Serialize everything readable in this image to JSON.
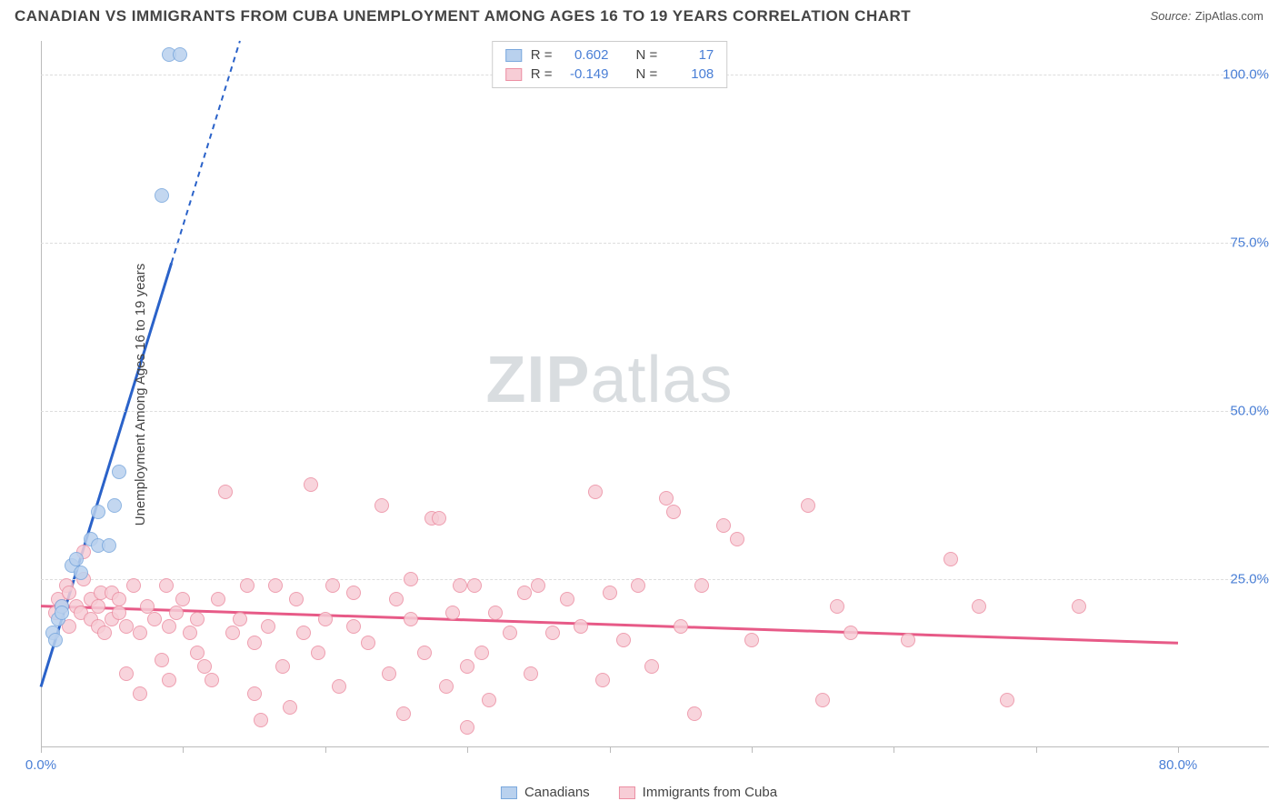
{
  "title": "CANADIAN VS IMMIGRANTS FROM CUBA UNEMPLOYMENT AMONG AGES 16 TO 19 YEARS CORRELATION CHART",
  "source_label": "Source:",
  "source_name": "ZipAtlas.com",
  "watermark_zip": "ZIP",
  "watermark_atlas": "atlas",
  "chart": {
    "type": "scatter",
    "y_axis_title": "Unemployment Among Ages 16 to 19 years",
    "xlim": [
      0,
      80
    ],
    "ylim": [
      0,
      105
    ],
    "x_ticks": [
      0,
      10,
      20,
      30,
      40,
      50,
      60,
      70,
      80
    ],
    "x_tick_labels": {
      "0": "0.0%",
      "80": "80.0%"
    },
    "y_gridlines": [
      25,
      50,
      75,
      100
    ],
    "y_tick_labels": {
      "25": "25.0%",
      "50": "50.0%",
      "75": "75.0%",
      "100": "100.0%"
    },
    "x_tick_label_color": "#4a7fd6",
    "y_tick_label_color": "#4a7fd6",
    "grid_color": "#dddddd",
    "axis_color": "#bbbbbb",
    "background_color": "#ffffff",
    "marker_radius": 8,
    "marker_stroke_width": 1.5,
    "series": [
      {
        "name": "Canadians",
        "fill_color": "#b9d1ee",
        "stroke_color": "#7aa8dd",
        "trend_color": "#2a62c9",
        "trend_width": 3,
        "trend_dash_after_ymax": true,
        "R": "0.602",
        "N": "17",
        "trend": {
          "x1": 0,
          "y1": 9,
          "x2": 14,
          "y2": 105
        },
        "points": [
          [
            0.8,
            17
          ],
          [
            1.0,
            16
          ],
          [
            1.2,
            19
          ],
          [
            1.5,
            21
          ],
          [
            1.5,
            20
          ],
          [
            2.2,
            27
          ],
          [
            2.5,
            28
          ],
          [
            2.8,
            26
          ],
          [
            3.5,
            31
          ],
          [
            4.0,
            30
          ],
          [
            4.0,
            35
          ],
          [
            4.8,
            30
          ],
          [
            5.2,
            36
          ],
          [
            5.5,
            41
          ],
          [
            8.5,
            82
          ],
          [
            9.0,
            103
          ],
          [
            9.8,
            103
          ]
        ]
      },
      {
        "name": "Immigrants from Cuba",
        "fill_color": "#f7cdd6",
        "stroke_color": "#ec8fa3",
        "trend_color": "#e75a87",
        "trend_width": 3,
        "trend_dash_after_ymax": false,
        "R": "-0.149",
        "N": "108",
        "trend": {
          "x1": 0,
          "y1": 21,
          "x2": 80,
          "y2": 15.5
        },
        "points": [
          [
            1.0,
            20
          ],
          [
            1.2,
            22
          ],
          [
            1.5,
            21
          ],
          [
            1.8,
            24
          ],
          [
            2.0,
            23
          ],
          [
            2.0,
            18
          ],
          [
            2.5,
            21
          ],
          [
            2.8,
            20
          ],
          [
            3.0,
            25
          ],
          [
            3.0,
            29
          ],
          [
            3.5,
            22
          ],
          [
            3.5,
            19
          ],
          [
            4.0,
            18
          ],
          [
            4.0,
            21
          ],
          [
            4.2,
            23
          ],
          [
            4.5,
            17
          ],
          [
            5.0,
            19
          ],
          [
            5.0,
            23
          ],
          [
            5.5,
            20
          ],
          [
            5.5,
            22
          ],
          [
            6.0,
            18
          ],
          [
            6.0,
            11
          ],
          [
            6.5,
            24
          ],
          [
            7.0,
            17
          ],
          [
            7.0,
            8
          ],
          [
            7.5,
            21
          ],
          [
            8.0,
            19
          ],
          [
            8.5,
            13
          ],
          [
            8.8,
            24
          ],
          [
            9.0,
            18
          ],
          [
            9.0,
            10
          ],
          [
            9.5,
            20
          ],
          [
            10.0,
            22
          ],
          [
            10.5,
            17
          ],
          [
            11.0,
            14
          ],
          [
            11.0,
            19
          ],
          [
            11.5,
            12
          ],
          [
            12.0,
            10
          ],
          [
            12.5,
            22
          ],
          [
            13.0,
            38
          ],
          [
            13.5,
            17
          ],
          [
            14.0,
            19
          ],
          [
            14.5,
            24
          ],
          [
            15.0,
            8
          ],
          [
            15.0,
            15.5
          ],
          [
            15.5,
            4
          ],
          [
            16.0,
            18
          ],
          [
            16.5,
            24
          ],
          [
            17.0,
            12
          ],
          [
            17.5,
            6
          ],
          [
            18.0,
            22
          ],
          [
            18.5,
            17
          ],
          [
            19.0,
            39
          ],
          [
            19.5,
            14
          ],
          [
            20.0,
            19
          ],
          [
            20.5,
            24
          ],
          [
            21.0,
            9
          ],
          [
            22.0,
            23
          ],
          [
            22.0,
            18
          ],
          [
            23.0,
            15.5
          ],
          [
            24.0,
            36
          ],
          [
            24.5,
            11
          ],
          [
            25.0,
            22
          ],
          [
            25.5,
            5
          ],
          [
            26.0,
            19
          ],
          [
            26.0,
            25
          ],
          [
            27.0,
            14
          ],
          [
            27.5,
            34
          ],
          [
            28.0,
            34
          ],
          [
            28.5,
            9
          ],
          [
            29.0,
            20
          ],
          [
            29.5,
            24
          ],
          [
            30.0,
            12
          ],
          [
            30.0,
            3
          ],
          [
            30.5,
            24
          ],
          [
            31.0,
            14
          ],
          [
            31.5,
            7
          ],
          [
            32.0,
            20
          ],
          [
            33.0,
            17
          ],
          [
            34.0,
            23
          ],
          [
            34.5,
            11
          ],
          [
            35.0,
            24
          ],
          [
            36.0,
            17
          ],
          [
            37.0,
            22
          ],
          [
            38.0,
            18
          ],
          [
            39.0,
            38
          ],
          [
            39.5,
            10
          ],
          [
            40.0,
            23
          ],
          [
            41.0,
            16
          ],
          [
            42.0,
            24
          ],
          [
            43.0,
            12
          ],
          [
            44.0,
            37
          ],
          [
            44.5,
            35
          ],
          [
            45.0,
            18
          ],
          [
            46.0,
            5
          ],
          [
            46.5,
            24
          ],
          [
            48.0,
            33
          ],
          [
            49.0,
            31
          ],
          [
            50.0,
            16
          ],
          [
            54.0,
            36
          ],
          [
            55.0,
            7
          ],
          [
            56.0,
            21
          ],
          [
            57.0,
            17
          ],
          [
            61.0,
            16
          ],
          [
            64.0,
            28
          ],
          [
            66.0,
            21
          ],
          [
            68.0,
            7
          ],
          [
            73.0,
            21
          ]
        ]
      }
    ]
  },
  "legend_stats_label_r": "R =",
  "legend_stats_label_n": "N ="
}
